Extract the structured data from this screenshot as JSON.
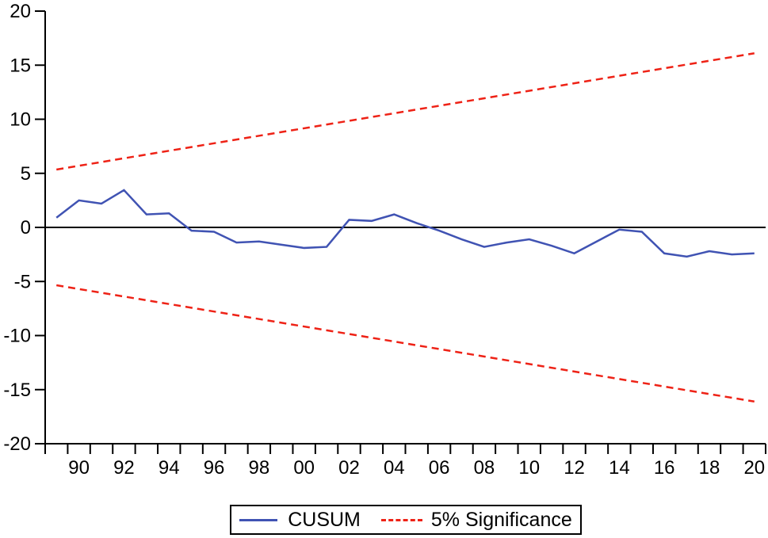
{
  "chart_data": {
    "type": "line",
    "title": "",
    "xlabel": "",
    "ylabel": "",
    "ylim": [
      -20,
      20
    ],
    "y_ticks": [
      20,
      15,
      10,
      5,
      0,
      -5,
      -10,
      -15,
      -20
    ],
    "x_range_years": [
      1989,
      2020
    ],
    "x_tick_years": [
      1990,
      1992,
      1994,
      1996,
      1998,
      2000,
      2002,
      2004,
      2006,
      2008,
      2010,
      2012,
      2014,
      2016,
      2018,
      2020
    ],
    "x_tick_labels": [
      "90",
      "92",
      "94",
      "96",
      "98",
      "00",
      "02",
      "04",
      "06",
      "08",
      "10",
      "12",
      "14",
      "16",
      "18",
      "20"
    ],
    "grid": false,
    "zero_line": true,
    "legend_position": "bottom",
    "series": [
      {
        "name": "CUSUM",
        "color": "#4053b3",
        "style": "solid",
        "x": [
          1989,
          1990,
          1991,
          1992,
          1993,
          1994,
          1995,
          1996,
          1997,
          1998,
          1999,
          2000,
          2001,
          2002,
          2003,
          2004,
          2005,
          2006,
          2007,
          2008,
          2009,
          2010,
          2011,
          2012,
          2013,
          2014,
          2015,
          2016,
          2017,
          2018,
          2019,
          2020
        ],
        "values": [
          0.9,
          2.5,
          2.2,
          3.45,
          1.2,
          1.3,
          -0.3,
          -0.4,
          -1.4,
          -1.3,
          -1.6,
          -1.9,
          -1.8,
          0.7,
          0.6,
          1.2,
          0.4,
          -0.3,
          -1.1,
          -1.8,
          -1.4,
          -1.1,
          -1.7,
          -2.4,
          -1.3,
          -0.2,
          -0.4,
          -2.4,
          -2.7,
          -2.2,
          -2.5,
          -2.4
        ]
      },
      {
        "name": "5% Significance (upper)",
        "color": "#ee2216",
        "style": "dashed",
        "x": [
          1989,
          2020
        ],
        "values": [
          5.35,
          16.1
        ]
      },
      {
        "name": "5% Significance (lower)",
        "color": "#ee2216",
        "style": "dashed",
        "x": [
          1989,
          2020
        ],
        "values": [
          -5.35,
          -16.1
        ]
      }
    ],
    "legend": [
      {
        "label": "CUSUM",
        "color": "#4053b3",
        "style": "solid"
      },
      {
        "label": "5% Significance",
        "color": "#ee2216",
        "style": "dashed"
      }
    ]
  }
}
